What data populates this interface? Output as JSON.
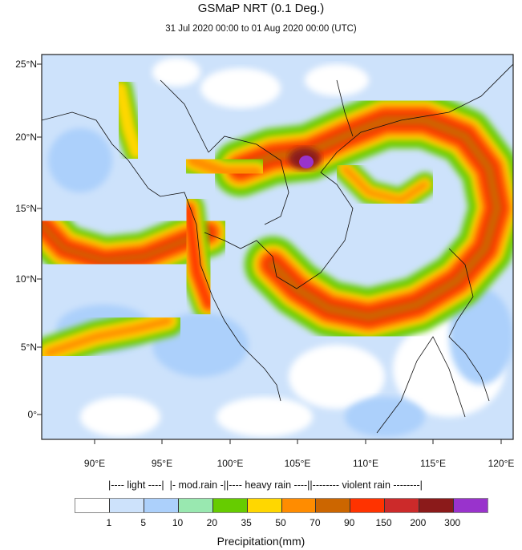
{
  "chart_data": {
    "type": "heatmap",
    "title": "GSMaP NRT (0.1 Deg.)",
    "subtitle": "31 Jul 2020 00:00 to 01 Aug 2020 00:00 (UTC)",
    "lon_ticks": [
      "90°E",
      "95°E",
      "100°E",
      "105°E",
      "110°E",
      "115°E",
      "120°E"
    ],
    "lat_ticks": [
      "25°N",
      "20°N",
      "15°N",
      "10°N",
      "5°N",
      "0°"
    ],
    "lon_range": [
      86,
      121
    ],
    "lat_range": [
      -2,
      26
    ],
    "colorbar": {
      "title": "Precipitation(mm)",
      "category_label": "|---- light ----|  |- mod.rain -||---- heavy rain ----||-------- violent rain --------|",
      "levels": [
        "1",
        "5",
        "10",
        "20",
        "35",
        "50",
        "70",
        "90",
        "150",
        "200",
        "300"
      ],
      "colors": [
        "#ffffff",
        "#cde2fb",
        "#acd0fb",
        "#99e8b0",
        "#66cc00",
        "#ffd700",
        "#ff8c00",
        "#cc6600",
        "#ff3300",
        "#cc2a2a",
        "#8b1a1a",
        "#9933cc"
      ]
    }
  }
}
